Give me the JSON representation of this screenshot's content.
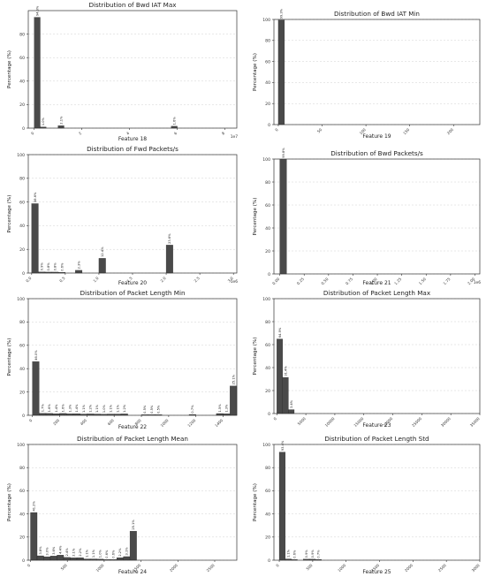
{
  "chart_data": [
    {
      "type": "bar",
      "title": "Distribution of Bwd IAT Max",
      "xlabel": "Feature 18",
      "ylabel": "Percentage (%)",
      "x_exponent": "1e7",
      "xlim": [
        -0.25,
        8.5
      ],
      "ylim": [
        0,
        100
      ],
      "xticks": [
        0,
        2,
        4,
        6,
        8
      ],
      "xtick_labels": [
        "0",
        "2",
        "4",
        "6",
        "8"
      ],
      "yticks": [
        0,
        20,
        40,
        60,
        80
      ],
      "bin_width": 0.25,
      "bins": [
        {
          "x": 0.0,
          "value": 94.3,
          "label": "94.3%"
        },
        {
          "x": 0.25,
          "value": 1.0,
          "label": "1.0%"
        },
        {
          "x": 1.0,
          "value": 2.1,
          "label": "2.1%"
        },
        {
          "x": 5.75,
          "value": 1.6,
          "label": "1.6%"
        }
      ],
      "grid": true
    },
    {
      "type": "bar",
      "title": "Distribution of Bwd IAT Min",
      "xlabel": "Feature 19",
      "ylabel": "Percentage (%)",
      "xlim": [
        -5,
        230
      ],
      "ylim": [
        0,
        100
      ],
      "xticks": [
        0,
        50,
        100,
        150,
        200
      ],
      "xtick_labels": [
        "0",
        "50",
        "100",
        "150",
        "200"
      ],
      "yticks": [
        0,
        20,
        40,
        60,
        80,
        100
      ],
      "bin_width": 7,
      "bins": [
        {
          "x": 0,
          "value": 99.3,
          "label": "99.3%"
        }
      ],
      "grid": true
    },
    {
      "type": "bar",
      "title": "Distribution of Fwd Packets/s",
      "xlabel": "Feature 20",
      "ylabel": "Percentage (%)",
      "x_exponent": "1e6",
      "xlim": [
        -0.05,
        3.05
      ],
      "ylim": [
        0,
        100
      ],
      "xticks": [
        0,
        0.5,
        1.0,
        1.5,
        2.0,
        2.5,
        3.0
      ],
      "xtick_labels": [
        "0.0",
        "0.5",
        "1.0",
        "1.5",
        "2.0",
        "2.5",
        "3.0"
      ],
      "yticks": [
        0,
        20,
        40,
        60,
        80,
        100
      ],
      "bin_width": 0.1,
      "bins": [
        {
          "x": 0.0,
          "value": 58.6,
          "label": "58.6%"
        },
        {
          "x": 0.1,
          "value": 0.9,
          "label": "0.9%"
        },
        {
          "x": 0.2,
          "value": 0.8,
          "label": "0.8%"
        },
        {
          "x": 0.3,
          "value": 0.8,
          "label": "0.8%"
        },
        {
          "x": 0.4,
          "value": 0.6,
          "label": "0.6%"
        },
        {
          "x": 0.65,
          "value": 2.3,
          "label": "2.3%"
        },
        {
          "x": 1.0,
          "value": 12.4,
          "label": "12.4%"
        },
        {
          "x": 2.0,
          "value": 23.6,
          "label": "23.6%"
        }
      ],
      "grid": true
    },
    {
      "type": "bar",
      "title": "Distribution of Bwd Packets/s",
      "xlabel": "Feature 21",
      "ylabel": "Percentage (%)",
      "x_exponent": "1e6",
      "xlim": [
        -0.06,
        2.05
      ],
      "ylim": [
        0,
        100
      ],
      "xticks": [
        0,
        0.25,
        0.5,
        0.75,
        1.0,
        1.25,
        1.5,
        1.75,
        2.0
      ],
      "xtick_labels": [
        "0.00",
        "0.25",
        "0.50",
        "0.75",
        "1.00",
        "1.25",
        "1.50",
        "1.75",
        "2.00"
      ],
      "yticks": [
        0,
        20,
        40,
        60,
        80,
        100
      ],
      "bin_width": 0.07,
      "bins": [
        {
          "x": 0.0,
          "value": 99.8,
          "label": "99.8%"
        }
      ],
      "grid": true
    },
    {
      "type": "bar",
      "title": "Distribution of Packet Length Min",
      "xlabel": "Feature 22",
      "ylabel": "Percentage (%)",
      "xlim": [
        -30,
        1500
      ],
      "ylim": [
        0,
        100
      ],
      "xticks": [
        0,
        200,
        400,
        600,
        800,
        1000,
        1200,
        1400
      ],
      "xtick_labels": [
        "0",
        "200",
        "400",
        "600",
        "800",
        "1000",
        "1200",
        "1400"
      ],
      "yticks": [
        0,
        20,
        40,
        60,
        80,
        100
      ],
      "bin_width": 50,
      "bins": [
        {
          "x": 0,
          "value": 46.0,
          "label": "46.0%"
        },
        {
          "x": 50,
          "value": 1.7,
          "label": "1.7%"
        },
        {
          "x": 100,
          "value": 1.6,
          "label": "1.6%"
        },
        {
          "x": 150,
          "value": 1.4,
          "label": "1.4%"
        },
        {
          "x": 200,
          "value": 1.6,
          "label": "1.6%"
        },
        {
          "x": 250,
          "value": 1.3,
          "label": "1.3%"
        },
        {
          "x": 300,
          "value": 1.4,
          "label": "1.4%"
        },
        {
          "x": 350,
          "value": 1.1,
          "label": "1.1%"
        },
        {
          "x": 400,
          "value": 1.2,
          "label": "1.2%"
        },
        {
          "x": 450,
          "value": 1.1,
          "label": "1.1%"
        },
        {
          "x": 500,
          "value": 1.0,
          "label": "1.0%"
        },
        {
          "x": 550,
          "value": 1.1,
          "label": "1.1%"
        },
        {
          "x": 600,
          "value": 1.1,
          "label": "1.1%"
        },
        {
          "x": 650,
          "value": 1.2,
          "label": "1.2%"
        },
        {
          "x": 800,
          "value": 0.5,
          "label": "0.5%"
        },
        {
          "x": 850,
          "value": 0.5,
          "label": "0.5%"
        },
        {
          "x": 900,
          "value": 0.5,
          "label": "0.5%"
        },
        {
          "x": 1150,
          "value": 0.7,
          "label": "0.7%"
        },
        {
          "x": 1350,
          "value": 1.5,
          "label": "1.5%"
        },
        {
          "x": 1400,
          "value": 1.3,
          "label": "1.3%"
        },
        {
          "x": 1450,
          "value": 25.1,
          "label": "25.1%"
        }
      ],
      "grid": true
    },
    {
      "type": "bar",
      "title": "Distribution of Packet Length Max",
      "xlabel": "Feature 23",
      "ylabel": "Percentage (%)",
      "xlim": [
        -500,
        35000
      ],
      "ylim": [
        0,
        100
      ],
      "xticks": [
        0,
        5000,
        10000,
        15000,
        20000,
        25000,
        30000,
        35000
      ],
      "xtick_labels": [
        "0",
        "5000",
        "10000",
        "15000",
        "20000",
        "25000",
        "30000",
        "35000"
      ],
      "yticks": [
        0,
        20,
        40,
        60,
        80,
        100
      ],
      "bin_width": 1000,
      "bins": [
        {
          "x": 0,
          "value": 64.9,
          "label": "64.9%"
        },
        {
          "x": 1000,
          "value": 31.4,
          "label": "31.4%"
        },
        {
          "x": 2000,
          "value": 3.4,
          "label": "3.4%"
        }
      ],
      "grid": true
    },
    {
      "type": "bar",
      "title": "Distribution of Packet Length Mean",
      "xlabel": "Feature 24",
      "ylabel": "Percentage (%)",
      "xlim": [
        -30,
        2800
      ],
      "ylim": [
        0,
        100
      ],
      "xticks": [
        0,
        500,
        1000,
        1500,
        2000,
        2500
      ],
      "xtick_labels": [
        "0",
        "500",
        "1000",
        "1500",
        "2000",
        "2500"
      ],
      "yticks": [
        0,
        20,
        40,
        60,
        80,
        100
      ],
      "bin_width": 90,
      "bins": [
        {
          "x": 0,
          "value": 41.2,
          "label": "41.2%"
        },
        {
          "x": 90,
          "value": 3.8,
          "label": "3.8%"
        },
        {
          "x": 180,
          "value": 3.0,
          "label": "3.0%"
        },
        {
          "x": 270,
          "value": 3.6,
          "label": "3.6%"
        },
        {
          "x": 360,
          "value": 4.4,
          "label": "4.4%"
        },
        {
          "x": 450,
          "value": 2.4,
          "label": "2.4%"
        },
        {
          "x": 540,
          "value": 2.1,
          "label": "2.1%"
        },
        {
          "x": 630,
          "value": 2.2,
          "label": "2.2%"
        },
        {
          "x": 720,
          "value": 1.1,
          "label": "1.1%"
        },
        {
          "x": 810,
          "value": 1.1,
          "label": "1.1%"
        },
        {
          "x": 900,
          "value": 1.0,
          "label": "1.0%"
        },
        {
          "x": 990,
          "value": 0.6,
          "label": "0.6%"
        },
        {
          "x": 1080,
          "value": 0.6,
          "label": "0.6%"
        },
        {
          "x": 1170,
          "value": 2.2,
          "label": "2.2%"
        },
        {
          "x": 1260,
          "value": 3.1,
          "label": "3.1%"
        },
        {
          "x": 1350,
          "value": 25.1,
          "label": "25.1%"
        }
      ],
      "grid": true
    },
    {
      "type": "bar",
      "title": "Distribution of Packet Length Std",
      "xlabel": "Feature 25",
      "ylabel": "Percentage (%)",
      "xlim": [
        -80,
        3000
      ],
      "ylim": [
        0,
        100
      ],
      "xticks": [
        0,
        500,
        1000,
        1500,
        2000,
        2500,
        3000
      ],
      "xtick_labels": [
        "0",
        "500",
        "1000",
        "1500",
        "2000",
        "2500",
        "3000"
      ],
      "yticks": [
        0,
        20,
        40,
        60,
        80,
        100
      ],
      "bin_width": 90,
      "bins": [
        {
          "x": 0,
          "value": 93.4,
          "label": "93.4%"
        },
        {
          "x": 90,
          "value": 1.1,
          "label": "1.1%"
        },
        {
          "x": 180,
          "value": 0.6,
          "label": "0.6%"
        },
        {
          "x": 360,
          "value": 0.9,
          "label": "0.9%"
        },
        {
          "x": 450,
          "value": 0.9,
          "label": "0.9%"
        },
        {
          "x": 540,
          "value": 0.7,
          "label": "0.7%"
        }
      ],
      "grid": true
    }
  ]
}
